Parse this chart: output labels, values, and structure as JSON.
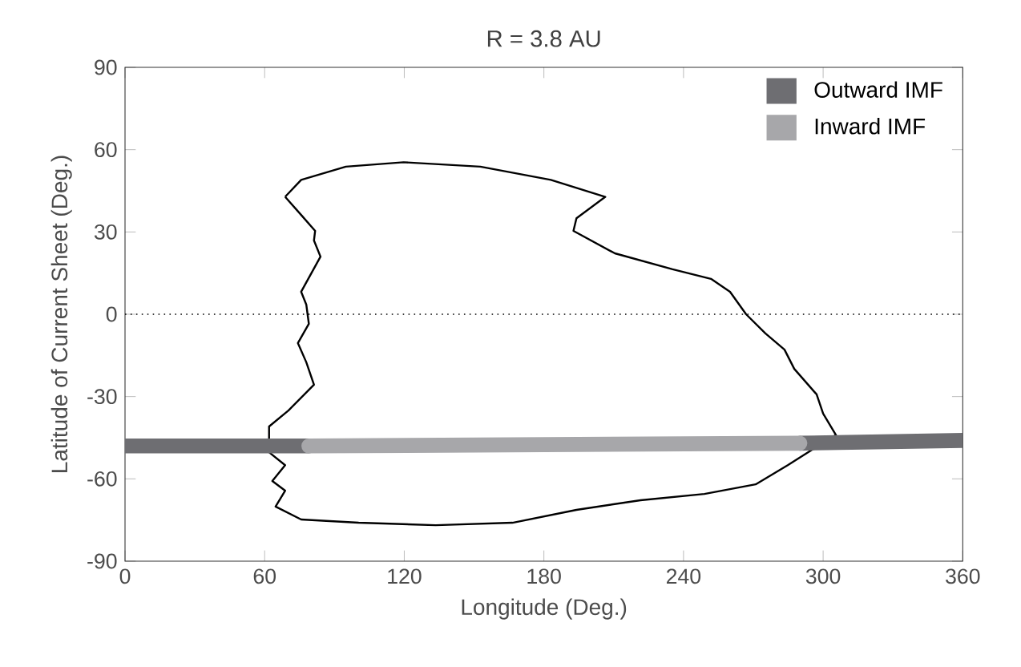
{
  "chart_data": {
    "type": "line",
    "title": "R = 3.8 AU",
    "xlabel": "Longitude (Deg.)",
    "ylabel": "Latitude of Current Sheet (Deg.)",
    "xlim": [
      0,
      360
    ],
    "ylim": [
      -90,
      90
    ],
    "xticks": [
      0,
      60,
      120,
      180,
      240,
      300,
      360
    ],
    "yticks": [
      -90,
      -60,
      -30,
      0,
      30,
      60,
      90
    ],
    "legend": "top right",
    "ref_lines": [
      {
        "axis": "y",
        "value": 0,
        "line_style": "dotted",
        "color": "#000000"
      }
    ],
    "series": [
      {
        "color": "#000000",
        "x": [
          68.8,
          75.7,
          94.9,
          119.7,
          152.7,
          183,
          206.4,
          194,
          192.7,
          210.5,
          235.3,
          251.8,
          260,
          266.9,
          275.2,
          283.4,
          287.6,
          297.2,
          300,
          305.5,
          295.8,
          284.8,
          271,
          249,
          221.5,
          194,
          166.5,
          133.5,
          100.4,
          75.7,
          64.7,
          68.8,
          63.3,
          68.8,
          61.9
        ],
        "values": [
          42.8,
          49,
          53.8,
          55.4,
          53.8,
          49,
          42.8,
          35,
          30.4,
          22.2,
          16.4,
          12.9,
          8.2,
          0,
          -7,
          -12.9,
          -19.9,
          -29.2,
          -36.2,
          -44,
          -49.1,
          -55,
          -62,
          -65.5,
          -67.8,
          -71.3,
          -76,
          -76.9,
          -76,
          -74.8,
          -70.1,
          -64.3,
          -60.8,
          -55,
          -50.3
        ]
      },
      {
        "color": "#000000",
        "x": [
          61.9,
          61.9,
          70.2,
          81.2,
          77.9,
          74.3,
          79,
          77.9,
          75.7,
          84,
          81.2,
          81.7,
          75.7,
          68.8
        ],
        "values": [
          -50.3,
          -40.9,
          -35.1,
          -25.7,
          -17.5,
          -10.5,
          -3.5,
          3.5,
          8.2,
          21,
          26.9,
          30.4,
          36.2,
          42.8
        ]
      },
      {
        "name": "Outward IMF",
        "color": "#6e6e72",
        "x": [
          0,
          79,
          185,
          290,
          360
        ],
        "values": [
          -48,
          -48,
          null,
          -47,
          -46
        ]
      },
      {
        "name": "Inward IMF",
        "color": "#a7a7aa",
        "x": [
          79,
          290
        ],
        "values": [
          -48,
          -47
        ]
      }
    ]
  }
}
